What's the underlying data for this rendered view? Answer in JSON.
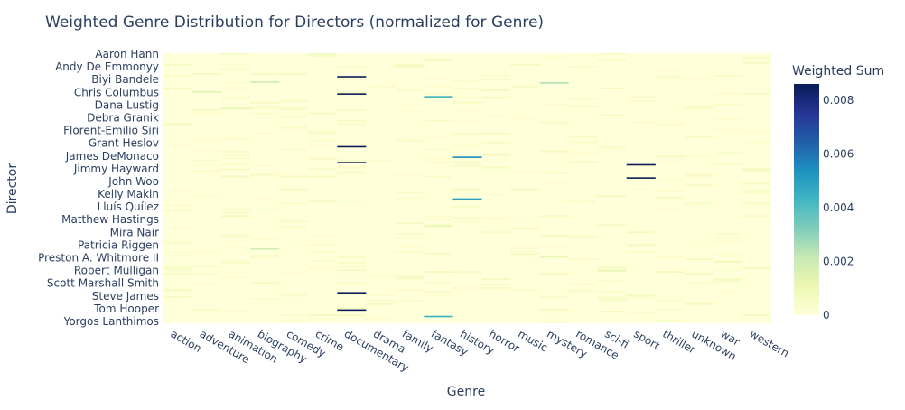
{
  "chart_data": {
    "type": "heatmap",
    "title": "Weighted Genre Distribution for Directors (normalized for Genre)",
    "xlabel": "Genre",
    "ylabel": "Director",
    "x_categories": [
      "action",
      "adventure",
      "animation",
      "biography",
      "comedy",
      "crime",
      "documentary",
      "drama",
      "family",
      "fantasy",
      "history",
      "horror",
      "music",
      "mystery",
      "romance",
      "sci-fi",
      "sport",
      "thriller",
      "unknown",
      "war",
      "western"
    ],
    "y_tick_labels": [
      "Aaron Hann",
      "Andy De Emmonyy",
      "Biyi Bandele",
      "Chris Columbus",
      "Dana Lustig",
      "Debra Granik",
      "Florent-Emilio Siri",
      "Grant Heslov",
      "James DeMonaco",
      "Jimmy Hayward",
      "John Woo",
      "Kelly Makin",
      "Lluís Quílez",
      "Matthew Hastings",
      "Mira Nair",
      "Patricia Riggen",
      "Preston A. Whitmore II",
      "Robert Mulligan",
      "Scott Marshall Smith",
      "Steve James",
      "Tom Hooper",
      "Yorgos Lanthimos"
    ],
    "colorbar": {
      "title": "Weighted Sum",
      "range": [
        0,
        0.0086
      ],
      "ticks": [
        0,
        0.002,
        0.004,
        0.006,
        0.008
      ],
      "tick_labels": [
        "0",
        "0.002",
        "0.004",
        "0.006",
        "0.008"
      ],
      "colorscale": [
        "#ffffd9",
        "#edf8b1",
        "#c7e9b4",
        "#7fcdbb",
        "#41b6c4",
        "#1d91c0",
        "#225ea8",
        "#253494",
        "#081d58"
      ]
    },
    "notable_cells": [
      {
        "genre": "documentary",
        "row_fraction": 0.087,
        "value": 0.0086
      },
      {
        "genre": "documentary",
        "row_fraction": 0.151,
        "value": 0.0086
      },
      {
        "genre": "documentary",
        "row_fraction": 0.346,
        "value": 0.0086
      },
      {
        "genre": "documentary",
        "row_fraction": 0.405,
        "value": 0.0086
      },
      {
        "genre": "documentary",
        "row_fraction": 0.887,
        "value": 0.0086
      },
      {
        "genre": "documentary",
        "row_fraction": 0.951,
        "value": 0.0086
      },
      {
        "genre": "sport",
        "row_fraction": 0.413,
        "value": 0.0086
      },
      {
        "genre": "sport",
        "row_fraction": 0.462,
        "value": 0.0086
      },
      {
        "genre": "history",
        "row_fraction": 0.385,
        "value": 0.0055
      },
      {
        "genre": "history",
        "row_fraction": 0.54,
        "value": 0.005
      },
      {
        "genre": "fantasy",
        "row_fraction": 0.161,
        "value": 0.0045
      },
      {
        "genre": "fantasy",
        "row_fraction": 0.975,
        "value": 0.0045
      },
      {
        "genre": "mystery",
        "row_fraction": 0.11,
        "value": 0.0025
      },
      {
        "genre": "biography",
        "row_fraction": 0.107,
        "value": 0.002
      },
      {
        "genre": "biography",
        "row_fraction": 0.725,
        "value": 0.0018
      },
      {
        "genre": "adventure",
        "row_fraction": 0.143,
        "value": 0.0015
      },
      {
        "genre": "animation",
        "row_fraction": 0.205,
        "value": 0.0013
      },
      {
        "genre": "fantasy",
        "row_fraction": 0.64,
        "value": 0.0012
      },
      {
        "genre": "sci-fi",
        "row_fraction": 0.805,
        "value": 0.0014
      },
      {
        "genre": "mystery",
        "row_fraction": 0.755,
        "value": 0.0012
      },
      {
        "genre": "war",
        "row_fraction": 0.772,
        "value": 0.001
      }
    ]
  }
}
